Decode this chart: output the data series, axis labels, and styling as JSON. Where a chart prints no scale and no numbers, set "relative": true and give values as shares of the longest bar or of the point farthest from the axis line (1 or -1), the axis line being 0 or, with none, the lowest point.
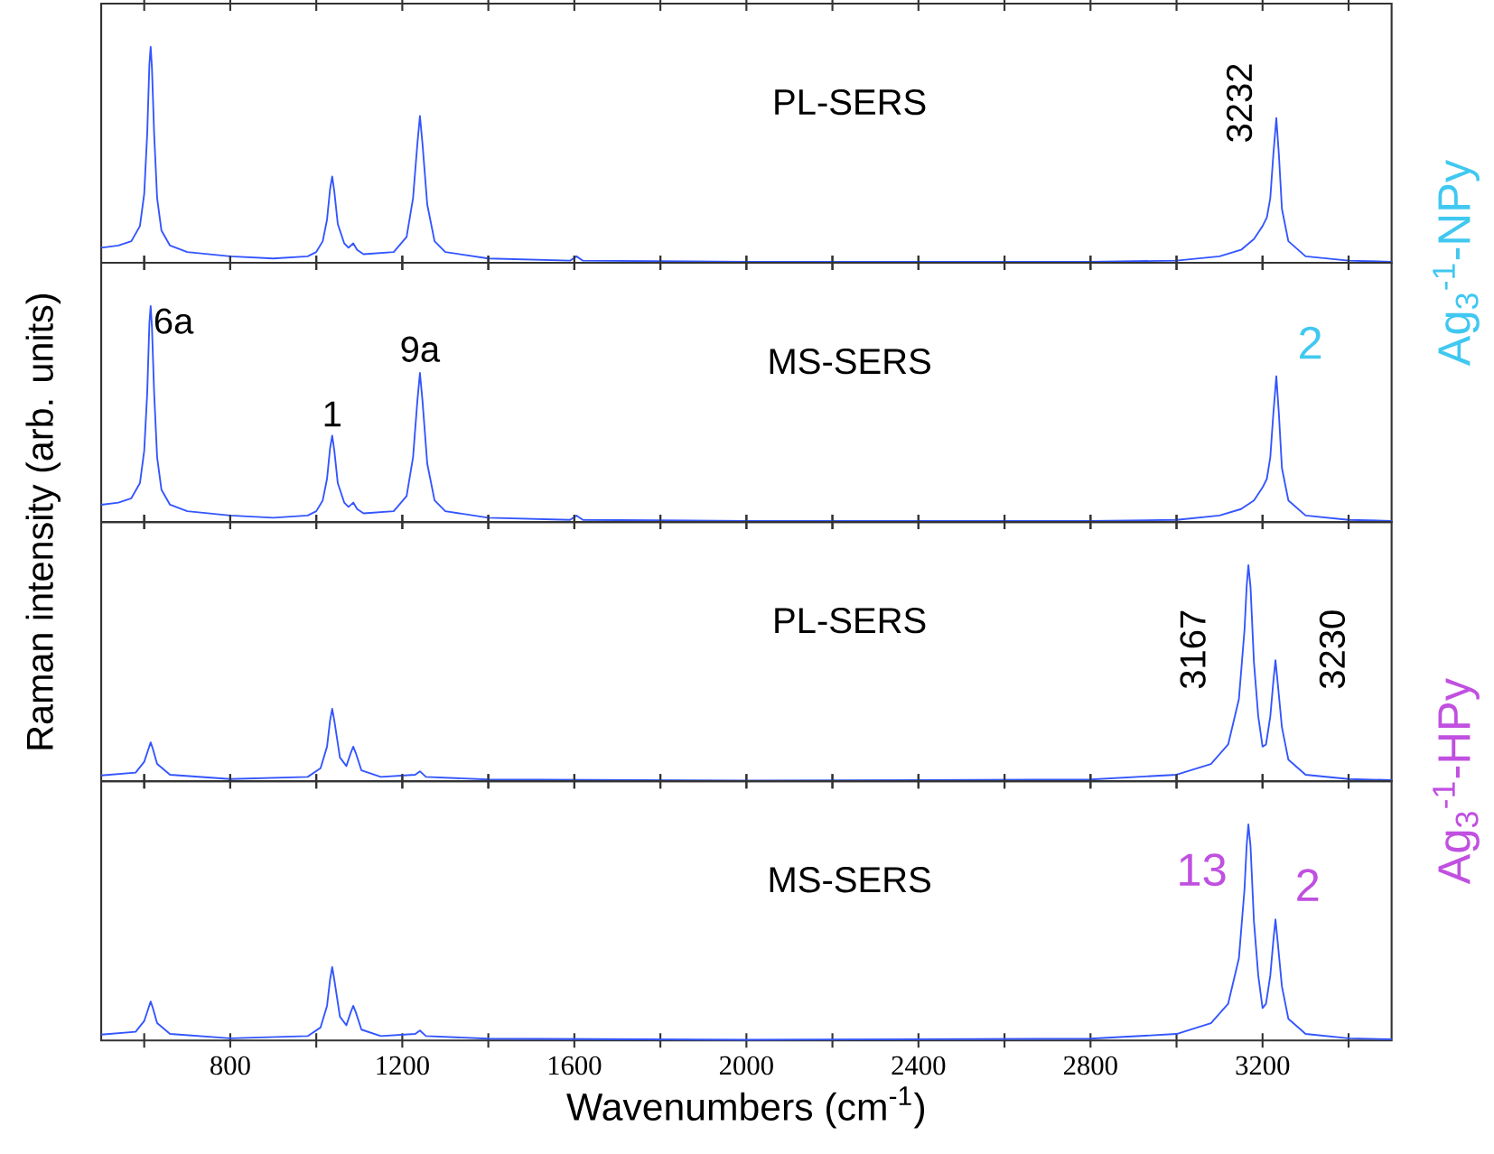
{
  "chart_data": [
    {
      "type": "line",
      "title": "PL-SERS",
      "ylabel": "Raman intensity (arb. units)",
      "relative": true,
      "tick_labels": false,
      "marker": "none",
      "color": "#3355ff",
      "xlim": [
        500,
        3500
      ],
      "xticks": [
        {
          "value": 600,
          "label": null
        },
        800,
        {
          "value": 1000,
          "label": null
        },
        1200,
        {
          "value": 1400,
          "label": null
        },
        1600,
        {
          "value": 1800,
          "label": null
        },
        2000,
        {
          "value": 2200,
          "label": null
        },
        2400,
        {
          "value": 2600,
          "label": null
        },
        2800,
        {
          "value": 3000,
          "label": null
        },
        3200,
        {
          "value": 3400,
          "label": null
        }
      ],
      "x": [
        500,
        540,
        570,
        590,
        600,
        607,
        612,
        615,
        618,
        623,
        630,
        640,
        660,
        700,
        800,
        900,
        980,
        1000,
        1015,
        1025,
        1032,
        1037,
        1042,
        1050,
        1065,
        1075,
        1086,
        1095,
        1110,
        1180,
        1210,
        1225,
        1235,
        1241,
        1247,
        1258,
        1275,
        1300,
        1400,
        1590,
        1605,
        1620,
        2000,
        2800,
        3000,
        3100,
        3150,
        3180,
        3200,
        3210,
        3218,
        3225,
        3232,
        3238,
        3245,
        3260,
        3300,
        3400,
        3500
      ],
      "values": [
        0.07,
        0.08,
        0.1,
        0.17,
        0.32,
        0.6,
        0.92,
        1.0,
        0.9,
        0.6,
        0.3,
        0.15,
        0.08,
        0.05,
        0.03,
        0.02,
        0.03,
        0.05,
        0.1,
        0.2,
        0.34,
        0.4,
        0.33,
        0.18,
        0.09,
        0.07,
        0.09,
        0.06,
        0.04,
        0.05,
        0.12,
        0.3,
        0.55,
        0.68,
        0.55,
        0.27,
        0.1,
        0.05,
        0.02,
        0.01,
        0.03,
        0.01,
        0.005,
        0.005,
        0.01,
        0.03,
        0.06,
        0.11,
        0.17,
        0.21,
        0.3,
        0.5,
        0.67,
        0.5,
        0.25,
        0.1,
        0.03,
        0.01,
        0.005
      ],
      "annotations": [
        "3232",
        "Ag$_{3}$$^{-1}$-NPy"
      ]
    },
    {
      "type": "line",
      "title": "MS-SERS",
      "relative": true,
      "tick_labels": false,
      "marker": "none",
      "color": "#3355ff",
      "xlim": [
        500,
        3500
      ],
      "xticks": [
        {
          "value": 600,
          "label": null
        },
        800,
        {
          "value": 1000,
          "label": null
        },
        1200,
        {
          "value": 1400,
          "label": null
        },
        1600,
        {
          "value": 1800,
          "label": null
        },
        2000,
        {
          "value": 2200,
          "label": null
        },
        2400,
        {
          "value": 2600,
          "label": null
        },
        2800,
        {
          "value": 3000,
          "label": null
        },
        3200,
        {
          "value": 3400,
          "label": null
        }
      ],
      "x": [
        500,
        540,
        570,
        590,
        600,
        607,
        612,
        615,
        618,
        623,
        630,
        640,
        660,
        700,
        800,
        900,
        980,
        1000,
        1015,
        1025,
        1032,
        1037,
        1042,
        1050,
        1065,
        1075,
        1086,
        1095,
        1110,
        1180,
        1210,
        1225,
        1235,
        1241,
        1247,
        1258,
        1275,
        1300,
        1400,
        1590,
        1605,
        1620,
        2000,
        2800,
        3000,
        3100,
        3150,
        3180,
        3200,
        3210,
        3218,
        3225,
        3232,
        3238,
        3245,
        3260,
        3300,
        3400,
        3500
      ],
      "values": [
        0.08,
        0.09,
        0.11,
        0.18,
        0.33,
        0.6,
        0.92,
        1.0,
        0.9,
        0.6,
        0.3,
        0.15,
        0.08,
        0.05,
        0.03,
        0.02,
        0.03,
        0.05,
        0.1,
        0.2,
        0.34,
        0.4,
        0.33,
        0.18,
        0.09,
        0.07,
        0.09,
        0.06,
        0.04,
        0.05,
        0.12,
        0.3,
        0.56,
        0.69,
        0.56,
        0.27,
        0.1,
        0.05,
        0.02,
        0.01,
        0.03,
        0.01,
        0.005,
        0.005,
        0.01,
        0.03,
        0.06,
        0.1,
        0.16,
        0.2,
        0.3,
        0.5,
        0.675,
        0.5,
        0.25,
        0.1,
        0.03,
        0.01,
        0.005
      ],
      "annotations": [
        "6a",
        "1",
        "9a",
        "2"
      ]
    },
    {
      "type": "line",
      "title": "PL-SERS",
      "relative": true,
      "tick_labels": false,
      "marker": "none",
      "color": "#3355ff",
      "xlim": [
        500,
        3500
      ],
      "xticks": [
        {
          "value": 600,
          "label": null
        },
        800,
        {
          "value": 1000,
          "label": null
        },
        1200,
        {
          "value": 1400,
          "label": null
        },
        1600,
        {
          "value": 1800,
          "label": null
        },
        2000,
        {
          "value": 2200,
          "label": null
        },
        2400,
        {
          "value": 2600,
          "label": null
        },
        2800,
        {
          "value": 3000,
          "label": null
        },
        3200,
        {
          "value": 3400,
          "label": null
        }
      ],
      "x": [
        500,
        580,
        600,
        610,
        615,
        620,
        630,
        660,
        800,
        980,
        1010,
        1025,
        1032,
        1037,
        1042,
        1055,
        1070,
        1080,
        1086,
        1092,
        1105,
        1150,
        1230,
        1241,
        1255,
        1400,
        2000,
        2800,
        3000,
        3080,
        3120,
        3145,
        3158,
        3163,
        3167,
        3172,
        3180,
        3190,
        3200,
        3208,
        3218,
        3225,
        3230,
        3235,
        3245,
        3260,
        3300,
        3400,
        3500
      ],
      "values": [
        0.027,
        0.04,
        0.09,
        0.15,
        0.18,
        0.15,
        0.08,
        0.03,
        0.01,
        0.02,
        0.06,
        0.16,
        0.28,
        0.335,
        0.28,
        0.11,
        0.07,
        0.13,
        0.16,
        0.13,
        0.05,
        0.02,
        0.03,
        0.046,
        0.02,
        0.008,
        0.003,
        0.008,
        0.03,
        0.08,
        0.17,
        0.38,
        0.7,
        0.9,
        1.0,
        0.9,
        0.55,
        0.3,
        0.16,
        0.17,
        0.3,
        0.46,
        0.56,
        0.46,
        0.25,
        0.1,
        0.03,
        0.01,
        0.005
      ],
      "annotations": [
        "3167",
        "3230",
        "Ag$_{3}$$^{-1}$-HPy"
      ]
    },
    {
      "type": "line",
      "title": "MS-SERS",
      "xlabel": "Wavenumbers (cm$^{-1}$)",
      "relative": true,
      "tick_labels": "x",
      "marker": "none",
      "color": "#3355ff",
      "xlim": [
        500,
        3500
      ],
      "xticks": [
        {
          "value": 600,
          "label": null
        },
        800,
        {
          "value": 1000,
          "label": null
        },
        1200,
        {
          "value": 1400,
          "label": null
        },
        1600,
        {
          "value": 1800,
          "label": null
        },
        2000,
        {
          "value": 2200,
          "label": null
        },
        2400,
        {
          "value": 2600,
          "label": null
        },
        2800,
        {
          "value": 3000,
          "label": null
        },
        3200,
        {
          "value": 3400,
          "label": null
        }
      ],
      "x": [
        500,
        580,
        600,
        610,
        615,
        620,
        630,
        660,
        800,
        980,
        1010,
        1025,
        1032,
        1037,
        1042,
        1055,
        1070,
        1080,
        1086,
        1092,
        1105,
        1150,
        1230,
        1241,
        1255,
        1400,
        2000,
        2800,
        3000,
        3080,
        3120,
        3145,
        3158,
        3163,
        3167,
        3172,
        3180,
        3190,
        3200,
        3208,
        3218,
        3225,
        3230,
        3235,
        3245,
        3260,
        3300,
        3400,
        3500
      ],
      "values": [
        0.027,
        0.04,
        0.09,
        0.15,
        0.18,
        0.15,
        0.08,
        0.03,
        0.01,
        0.02,
        0.06,
        0.16,
        0.28,
        0.34,
        0.28,
        0.11,
        0.07,
        0.13,
        0.16,
        0.13,
        0.05,
        0.02,
        0.03,
        0.046,
        0.02,
        0.008,
        0.003,
        0.008,
        0.03,
        0.08,
        0.17,
        0.38,
        0.7,
        0.9,
        1.0,
        0.9,
        0.55,
        0.3,
        0.15,
        0.17,
        0.3,
        0.46,
        0.56,
        0.46,
        0.25,
        0.1,
        0.03,
        0.01,
        0.005
      ],
      "annotations": [
        "13",
        "2"
      ]
    }
  ]
}
